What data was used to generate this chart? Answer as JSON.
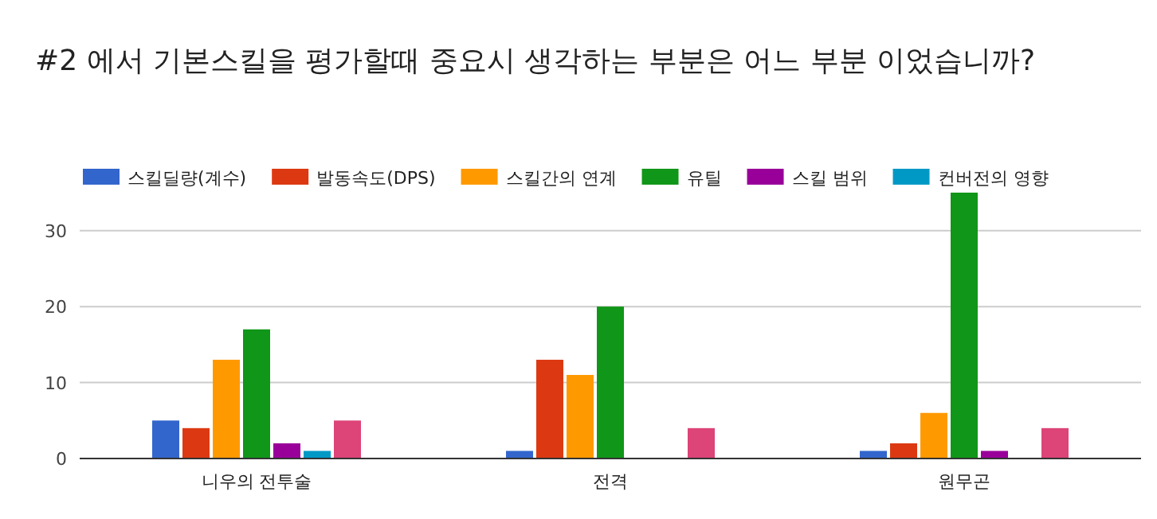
{
  "chart_data": {
    "type": "bar",
    "title": "#2 에서 기본스킬을 평가할때 중요시 생각하는 부분은 어느 부분 이었습니까?",
    "categories": [
      "니우의 전투술",
      "전격",
      "원무곤"
    ],
    "series": [
      {
        "name": "스킬딜량(계수)",
        "color": "#3366cc",
        "values": [
          5,
          1,
          1
        ]
      },
      {
        "name": "발동속도(DPS)",
        "color": "#dc3912",
        "values": [
          4,
          13,
          2
        ]
      },
      {
        "name": "스킬간의 연계",
        "color": "#ff9900",
        "values": [
          13,
          11,
          6
        ]
      },
      {
        "name": "유틸",
        "color": "#109618",
        "values": [
          17,
          20,
          35
        ]
      },
      {
        "name": "스킬 범위",
        "color": "#990099",
        "values": [
          2,
          0,
          1
        ]
      },
      {
        "name": "컨버전의 영향",
        "color": "#0099c6",
        "values": [
          1,
          0,
          0
        ]
      },
      {
        "color": "#dd4477",
        "values": [
          5,
          4,
          4
        ]
      }
    ],
    "ylim": [
      0,
      35
    ],
    "yticks": [
      0,
      10,
      20,
      30
    ],
    "grid": "y",
    "legend": "top"
  }
}
